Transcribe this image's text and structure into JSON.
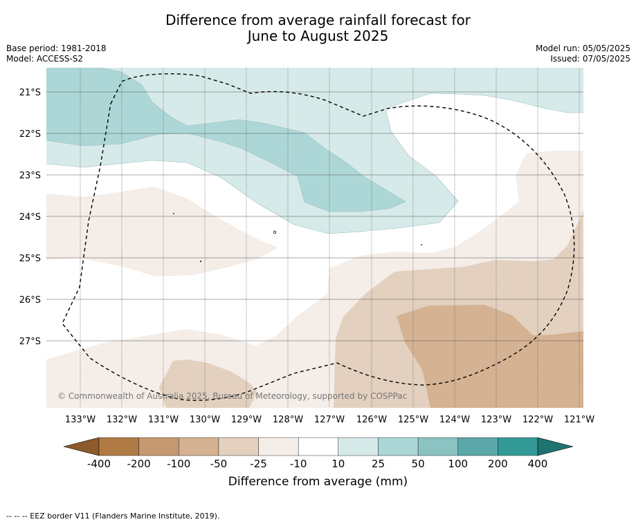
{
  "title_line1": "Difference from average rainfall forecast for",
  "title_line2": "June to August 2025",
  "meta_left": [
    "Base period: 1981-2018",
    "Model: ACCESS-S2"
  ],
  "meta_right": [
    "Model run: 05/05/2025",
    "Issued: 07/05/2025"
  ],
  "latitudes": [
    "21°S",
    "22°S",
    "23°S",
    "24°S",
    "25°S",
    "26°S",
    "27°S"
  ],
  "longitudes": [
    "133°W",
    "132°W",
    "131°W",
    "130°W",
    "129°W",
    "128°W",
    "127°W",
    "126°W",
    "125°W",
    "124°W",
    "123°W",
    "122°W",
    "121°W"
  ],
  "copyright": "© Commonwealth of Australia 2025, Bureau of Meteorology, supported by COSPPac",
  "colorbar": {
    "ticks": [
      "-400",
      "-200",
      "-100",
      "-50",
      "-25",
      "-10",
      "10",
      "25",
      "50",
      "100",
      "200",
      "400"
    ],
    "colors": [
      "#8c5a2b",
      "#b07a45",
      "#c49870",
      "#d4b292",
      "#e3d0bf",
      "#f4ede8",
      "#ffffff",
      "#d6eae9",
      "#acd7d6",
      "#8ac3c2",
      "#5ca8a8",
      "#349a98",
      "#1f7472"
    ],
    "label": "Difference from average (mm)"
  },
  "footer": "-- -- -- EEZ border V11 (Flanders Marine Institute, 2019).",
  "palette": {
    "teal_light": "#d6eae9",
    "teal_mid": "#acd7d6",
    "brown_pale": "#f4ede8",
    "brown_light": "#e3d0bf",
    "brown_mid": "#d4b292"
  }
}
